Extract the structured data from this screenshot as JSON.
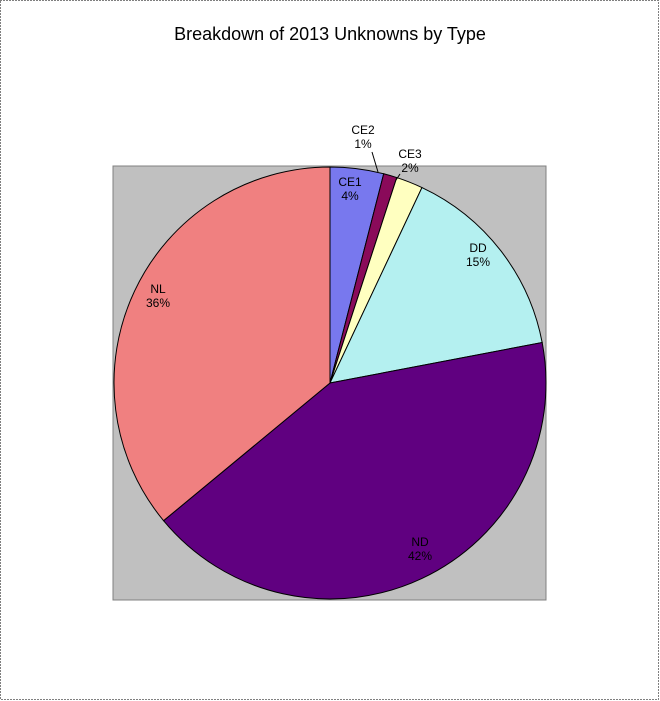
{
  "chart_data": {
    "type": "pie",
    "title": "Breakdown of 2013 Unknowns by Type",
    "categories": [
      "CE1",
      "CE2",
      "CE3",
      "DD",
      "ND",
      "NL"
    ],
    "values": [
      4,
      1,
      2,
      15,
      42,
      36
    ],
    "value_labels": [
      "4%",
      "1%",
      "2%",
      "15%",
      "42%",
      "36%"
    ],
    "colors": [
      "#7878ee",
      "#8a0a5a",
      "#ffffc0",
      "#b4f0f0",
      "#600080",
      "#f08080"
    ]
  }
}
